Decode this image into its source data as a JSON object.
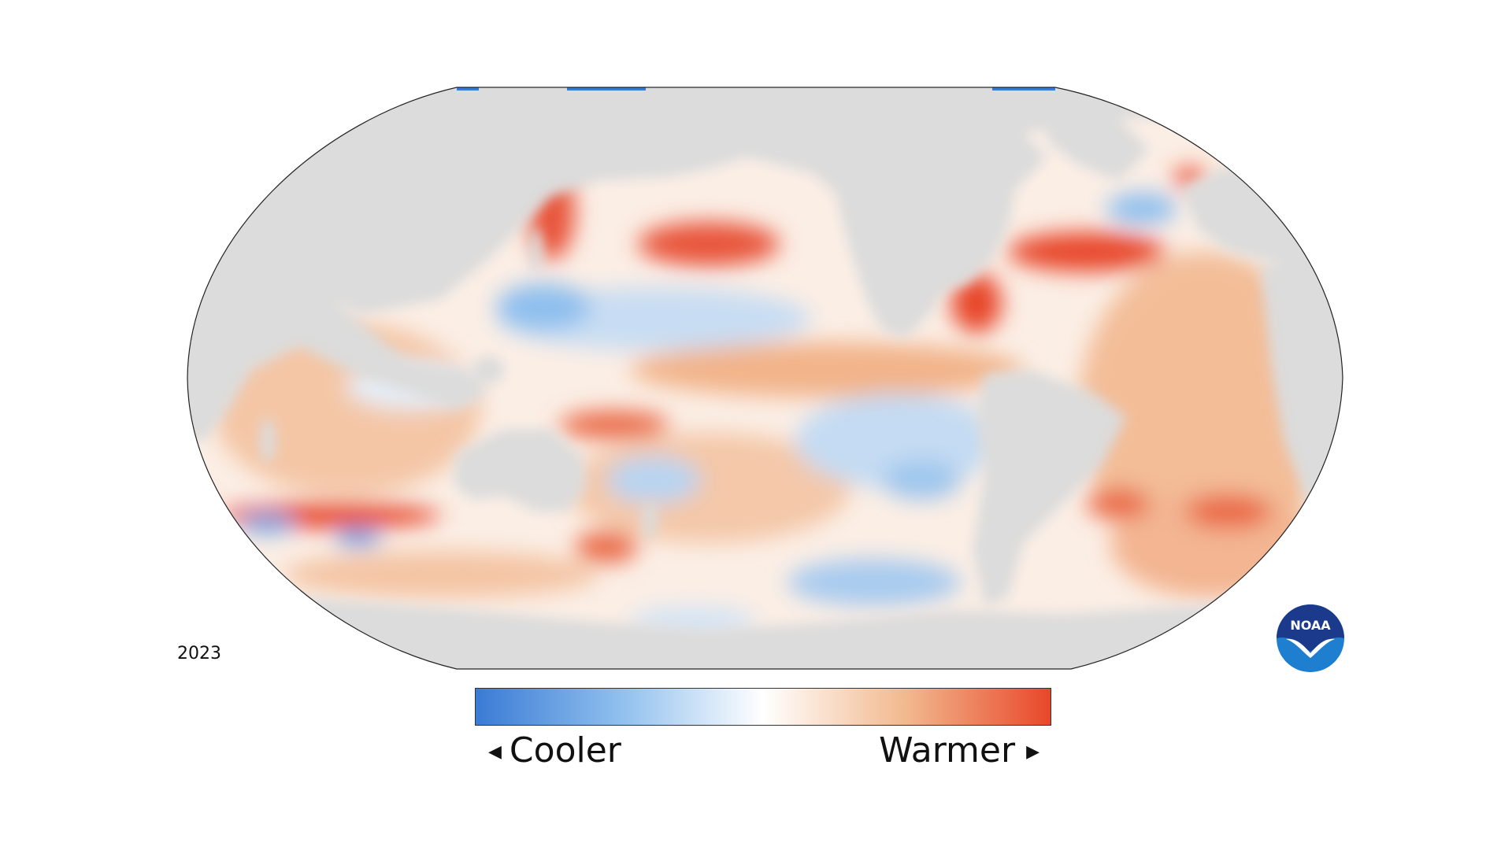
{
  "year_label": "2023",
  "legend": {
    "cool_label": "Cooler",
    "warm_label": "Warmer",
    "cool_arrow": "◀",
    "warm_arrow": "▶",
    "gradient_colors": [
      "#3a7bd5",
      "#8fbfee",
      "#ffffff",
      "#f2b88d",
      "#e8472a"
    ]
  },
  "logo": {
    "text": "NOAA",
    "top_color": "#1b3a8c",
    "bottom_color": "#1e7fd0"
  },
  "colors": {
    "land": "#dcdcdc",
    "ocean_neutral": "#fbeee5",
    "warm_strong": "#e8472a",
    "warm_mid": "#f0a07a",
    "cool_mid": "#9fc6ee",
    "cool_strong": "#3a7bd5",
    "outline": "#222222"
  }
}
